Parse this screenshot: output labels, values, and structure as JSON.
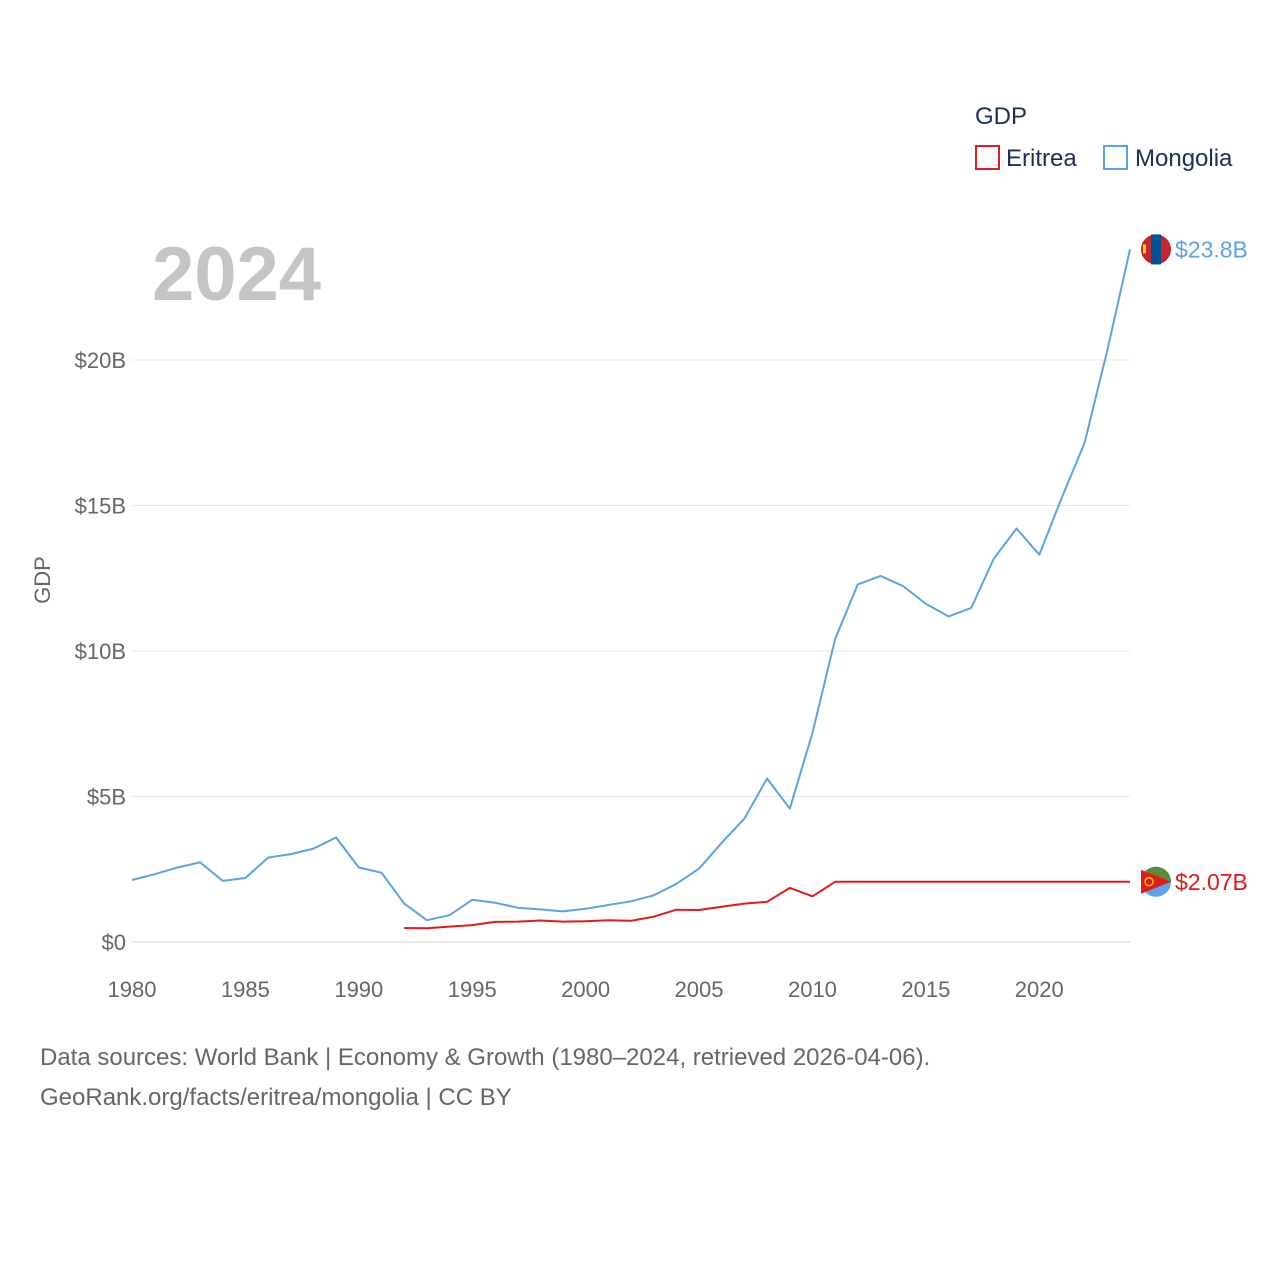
{
  "chart_data": {
    "type": "line",
    "ylabel": "GDP",
    "legend": {
      "title": "GDP",
      "position": "top-right"
    },
    "year_label": "2024",
    "ylim": [
      0,
      24000000000
    ],
    "xlim": [
      1980,
      2024
    ],
    "x_ticks": [
      "1980",
      "1985",
      "1990",
      "1995",
      "2000",
      "2005",
      "2010",
      "2015",
      "2020"
    ],
    "x_tick_values": [
      1980,
      1985,
      1990,
      1995,
      2000,
      2005,
      2010,
      2015,
      2020
    ],
    "y_ticks": [
      "$0",
      "$5B",
      "$10B",
      "$15B",
      "$20B"
    ],
    "y_tick_values": [
      0,
      5000000000,
      10000000000,
      15000000000,
      20000000000
    ],
    "grid": true,
    "series": [
      {
        "name": "Eritrea",
        "color": "#e31a1c",
        "end_label": "$2.07B",
        "x": [
          1992,
          1993,
          1994,
          1995,
          1996,
          1997,
          1998,
          1999,
          2000,
          2001,
          2002,
          2003,
          2004,
          2005,
          2006,
          2007,
          2008,
          2009,
          2010,
          2011,
          2012,
          2013,
          2014,
          2015,
          2016,
          2017,
          2018,
          2019,
          2020,
          2021,
          2022,
          2023,
          2024
        ],
        "values": [
          480000000.0,
          470000000.0,
          530000000.0,
          580000000.0,
          690000000.0,
          700000000.0,
          740000000.0,
          700000000.0,
          710000000.0,
          750000000.0,
          730000000.0,
          870000000.0,
          1110000000.0,
          1100000000.0,
          1210000000.0,
          1320000000.0,
          1380000000.0,
          1860000000.0,
          1570000000.0,
          2070000000.0,
          2070000000.0,
          2070000000.0,
          2070000000.0,
          2070000000.0,
          2070000000.0,
          2070000000.0,
          2070000000.0,
          2070000000.0,
          2070000000.0,
          2070000000.0,
          2070000000.0,
          2070000000.0,
          2070000000.0
        ]
      },
      {
        "name": "Mongolia",
        "color": "#5ba3e6",
        "end_label": "$23.8B",
        "x": [
          1980,
          1981,
          1982,
          1983,
          1984,
          1985,
          1986,
          1987,
          1988,
          1989,
          1990,
          1991,
          1992,
          1993,
          1994,
          1995,
          1996,
          1997,
          1998,
          1999,
          2000,
          2001,
          2002,
          2003,
          2004,
          2005,
          2006,
          2007,
          2008,
          2009,
          2010,
          2011,
          2012,
          2013,
          2014,
          2015,
          2016,
          2017,
          2018,
          2019,
          2020,
          2021,
          2022,
          2023,
          2024
        ],
        "values": [
          2130000000.0,
          2330000000.0,
          2560000000.0,
          2740000000.0,
          2100000000.0,
          2200000000.0,
          2900000000.0,
          3020000000.0,
          3210000000.0,
          3590000000.0,
          2560000000.0,
          2380000000.0,
          1320000000.0,
          750000000.0,
          920000000.0,
          1450000000.0,
          1350000000.0,
          1180000000.0,
          1120000000.0,
          1050000000.0,
          1140000000.0,
          1270000000.0,
          1400000000.0,
          1600000000.0,
          2000000000.0,
          2520000000.0,
          3410000000.0,
          4240000000.0,
          5620000000.0,
          4580000000.0,
          7190000000.0,
          10410000000.0,
          12290000000.0,
          12580000000.0,
          12230000000.0,
          11620000000.0,
          11190000000.0,
          11480000000.0,
          13180000000.0,
          14210000000.0,
          13310000000.0,
          15290000000.0,
          17150000000.0,
          20330000000.0,
          23800000000.0
        ]
      }
    ]
  },
  "footer": {
    "line1": "Data sources: World Bank | Economy & Growth (1980–2024, retrieved 2026-04-06).",
    "line2": "GeoRank.org/facts/eritrea/mongolia | CC BY"
  }
}
